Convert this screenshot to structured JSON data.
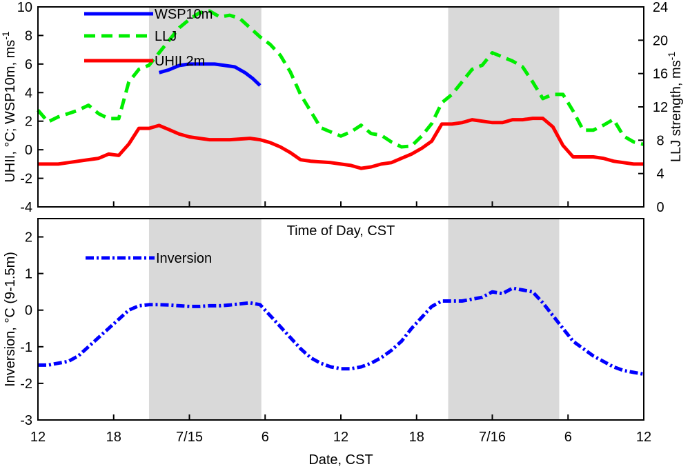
{
  "chart_data": [
    {
      "type": "line",
      "panel": "top",
      "xlabel_between_panels": "Time of Day, CST",
      "ylabel_left": "UHII, °C; WSP10m, ms",
      "ylabel_left_sup": "-1",
      "ylabel_right": "LLJ strength, ms",
      "ylabel_right_sup": "-1",
      "ylim_left": [
        -4,
        10
      ],
      "yticks_left": [
        "-4",
        "-2",
        "0",
        "2",
        "4",
        "6",
        "8",
        "10"
      ],
      "ylim_right": [
        0,
        24
      ],
      "yticks_right": [
        "0",
        "4",
        "8",
        "12",
        "16",
        "20",
        "24"
      ],
      "xlim_hours": [
        12,
        60
      ],
      "shaded_intervals_hours": [
        [
          20.8,
          29.7
        ],
        [
          44.5,
          53.3
        ]
      ],
      "grid": false,
      "legend": "top-left",
      "series": [
        {
          "name": "WSP10m",
          "axis": "left",
          "color": "#0000ff",
          "dash": "solid",
          "x": [
            21.6,
            22.4,
            23.2,
            24.0,
            25.0,
            26.0,
            26.8,
            27.6,
            28.4,
            29.0,
            29.6
          ],
          "y": [
            5.4,
            5.6,
            5.9,
            6.0,
            6.0,
            6.0,
            5.9,
            5.8,
            5.4,
            5.0,
            4.5
          ]
        },
        {
          "name": "LLJ",
          "axis": "right",
          "color": "#00ee00",
          "dash": "dashed",
          "x": [
            12.0,
            12.8,
            13.6,
            14.4,
            15.2,
            16.0,
            16.8,
            17.6,
            18.4,
            19.2,
            20.0,
            20.8,
            21.6,
            22.4,
            23.2,
            24.0,
            24.8,
            25.6,
            26.4,
            27.2,
            28.0,
            28.8,
            29.6,
            30.4,
            31.2,
            32.0,
            32.8,
            33.6,
            34.4,
            35.2,
            36.0,
            36.8,
            37.6,
            38.4,
            39.2,
            40.0,
            40.8,
            41.6,
            42.4,
            43.2,
            44.0,
            44.8,
            45.6,
            46.4,
            47.2,
            48.0,
            48.8,
            49.6,
            50.4,
            51.2,
            52.0,
            52.8,
            53.6,
            54.4,
            55.2,
            56.0,
            56.8,
            57.6,
            58.4,
            59.2,
            60.0
          ],
          "y": [
            11.6,
            10.2,
            10.8,
            11.2,
            11.6,
            12.2,
            11.2,
            10.6,
            10.6,
            15.0,
            16.5,
            17.0,
            18.5,
            20.0,
            21.5,
            22.5,
            23.3,
            23.5,
            22.8,
            23.0,
            22.6,
            21.5,
            20.4,
            19.5,
            18.2,
            16.2,
            13.5,
            11.5,
            9.5,
            9.0,
            8.5,
            9.0,
            9.8,
            8.8,
            8.6,
            7.8,
            7.2,
            7.3,
            8.5,
            10.0,
            12.5,
            13.5,
            15.0,
            16.5,
            17.0,
            18.5,
            18.0,
            17.5,
            16.8,
            15.0,
            13.0,
            13.5,
            13.5,
            11.5,
            9.2,
            9.2,
            9.8,
            10.5,
            8.5,
            7.8,
            7.5
          ]
        },
        {
          "name": "UHII 2m",
          "axis": "left",
          "color": "#ff0000",
          "dash": "solid",
          "x": [
            12.0,
            12.8,
            13.6,
            14.4,
            15.2,
            16.0,
            16.8,
            17.6,
            18.4,
            19.2,
            20.0,
            20.8,
            21.6,
            22.4,
            23.2,
            24.0,
            24.8,
            25.6,
            26.4,
            27.2,
            28.0,
            28.8,
            29.6,
            30.4,
            31.2,
            32.0,
            32.8,
            33.6,
            34.4,
            35.2,
            36.0,
            36.8,
            37.6,
            38.4,
            39.2,
            40.0,
            40.8,
            41.6,
            42.4,
            43.2,
            44.0,
            44.8,
            45.6,
            46.4,
            47.2,
            48.0,
            48.8,
            49.6,
            50.4,
            51.2,
            52.0,
            52.8,
            53.6,
            54.4,
            55.2,
            56.0,
            56.8,
            57.6,
            58.4,
            59.2,
            60.0
          ],
          "y": [
            -1.0,
            -1.0,
            -1.0,
            -0.9,
            -0.8,
            -0.7,
            -0.6,
            -0.3,
            -0.4,
            0.4,
            1.5,
            1.5,
            1.7,
            1.4,
            1.1,
            0.9,
            0.8,
            0.7,
            0.7,
            0.7,
            0.75,
            0.8,
            0.7,
            0.5,
            0.2,
            -0.2,
            -0.7,
            -0.8,
            -0.85,
            -0.9,
            -1.0,
            -1.1,
            -1.3,
            -1.2,
            -1.0,
            -0.9,
            -0.6,
            -0.3,
            0.1,
            0.6,
            1.8,
            1.8,
            1.9,
            2.1,
            2.0,
            1.9,
            1.9,
            2.1,
            2.1,
            2.2,
            2.2,
            1.6,
            0.3,
            -0.5,
            -0.5,
            -0.5,
            -0.6,
            -0.8,
            -0.9,
            -1.0,
            -1.0
          ]
        }
      ]
    },
    {
      "type": "line",
      "panel": "bottom",
      "xlabel": "Date, CST",
      "xtick_labels": [
        "12",
        "18",
        "7/15",
        "6",
        "12",
        "18",
        "7/16",
        "6",
        "12"
      ],
      "xtick_hours": [
        12,
        18,
        24,
        30,
        36,
        42,
        48,
        54,
        60
      ],
      "ylabel": "Inversion, °C (9-1.5m)",
      "ylim": [
        -3,
        2.5
      ],
      "yticks": [
        "-3",
        "-2",
        "-1",
        "0",
        "1",
        "2"
      ],
      "xlim_hours": [
        12,
        60
      ],
      "shaded_intervals_hours": [
        [
          20.8,
          29.7
        ],
        [
          44.5,
          53.3
        ]
      ],
      "grid": false,
      "legend": "top-left",
      "series": [
        {
          "name": "Inversion",
          "color": "#0000ff",
          "dash": "dashdot",
          "x": [
            12.0,
            12.8,
            13.6,
            14.4,
            15.2,
            16.0,
            16.8,
            17.6,
            18.4,
            19.2,
            20.0,
            20.8,
            21.6,
            22.4,
            23.2,
            24.0,
            24.8,
            25.6,
            26.4,
            27.2,
            28.0,
            28.8,
            29.6,
            30.4,
            31.2,
            32.0,
            32.8,
            33.6,
            34.4,
            35.2,
            36.0,
            36.8,
            37.6,
            38.4,
            39.2,
            40.0,
            40.8,
            41.6,
            42.4,
            43.2,
            44.0,
            44.8,
            45.6,
            46.4,
            47.2,
            48.0,
            48.8,
            49.6,
            50.4,
            51.2,
            52.0,
            52.8,
            53.6,
            54.4,
            55.2,
            56.0,
            56.8,
            57.6,
            58.4,
            59.2,
            60.0
          ],
          "y": [
            -1.5,
            -1.5,
            -1.45,
            -1.4,
            -1.25,
            -1.0,
            -0.75,
            -0.5,
            -0.25,
            0.0,
            0.12,
            0.15,
            0.15,
            0.14,
            0.12,
            0.1,
            0.1,
            0.12,
            0.12,
            0.14,
            0.17,
            0.2,
            0.15,
            -0.15,
            -0.45,
            -0.75,
            -1.05,
            -1.3,
            -1.45,
            -1.55,
            -1.6,
            -1.6,
            -1.55,
            -1.45,
            -1.3,
            -1.1,
            -0.85,
            -0.5,
            -0.2,
            0.1,
            0.25,
            0.25,
            0.25,
            0.3,
            0.35,
            0.5,
            0.45,
            0.6,
            0.55,
            0.5,
            0.2,
            -0.15,
            -0.5,
            -0.85,
            -1.05,
            -1.25,
            -1.4,
            -1.55,
            -1.65,
            -1.7,
            -1.75
          ]
        }
      ]
    }
  ]
}
